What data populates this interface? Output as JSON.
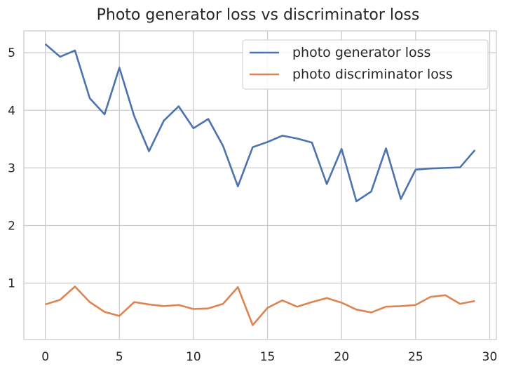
{
  "chart_data": {
    "type": "line",
    "title": "Photo generator loss vs discriminator loss",
    "xlabel": "",
    "ylabel": "",
    "xlim": [
      -1.45,
      30.45
    ],
    "ylim": [
      0.02,
      5.38
    ],
    "xticks": [
      0,
      5,
      10,
      15,
      20,
      25,
      30
    ],
    "yticks": [
      1,
      2,
      3,
      4,
      5
    ],
    "grid": true,
    "legend_position": "top-right",
    "x": [
      0,
      1,
      2,
      3,
      4,
      5,
      6,
      7,
      8,
      9,
      10,
      11,
      12,
      13,
      14,
      15,
      16,
      17,
      18,
      19,
      20,
      21,
      22,
      23,
      24,
      25,
      26,
      27,
      28,
      29
    ],
    "series": [
      {
        "name": "photo generator loss",
        "color": "#4c72b0",
        "values": [
          5.15,
          4.93,
          5.04,
          4.21,
          3.93,
          4.74,
          3.9,
          3.29,
          3.82,
          4.07,
          3.69,
          3.85,
          3.38,
          2.68,
          3.36,
          3.45,
          3.56,
          3.51,
          3.44,
          2.72,
          3.33,
          2.42,
          2.59,
          3.34,
          2.46,
          2.97,
          2.99,
          3.0,
          3.01,
          3.31
        ]
      },
      {
        "name": "photo discriminator loss",
        "color": "#dd8452",
        "values": [
          0.63,
          0.71,
          0.94,
          0.67,
          0.5,
          0.43,
          0.67,
          0.63,
          0.6,
          0.62,
          0.55,
          0.56,
          0.64,
          0.93,
          0.27,
          0.57,
          0.7,
          0.59,
          0.67,
          0.74,
          0.66,
          0.54,
          0.49,
          0.59,
          0.6,
          0.62,
          0.76,
          0.79,
          0.64,
          0.69
        ]
      }
    ]
  }
}
